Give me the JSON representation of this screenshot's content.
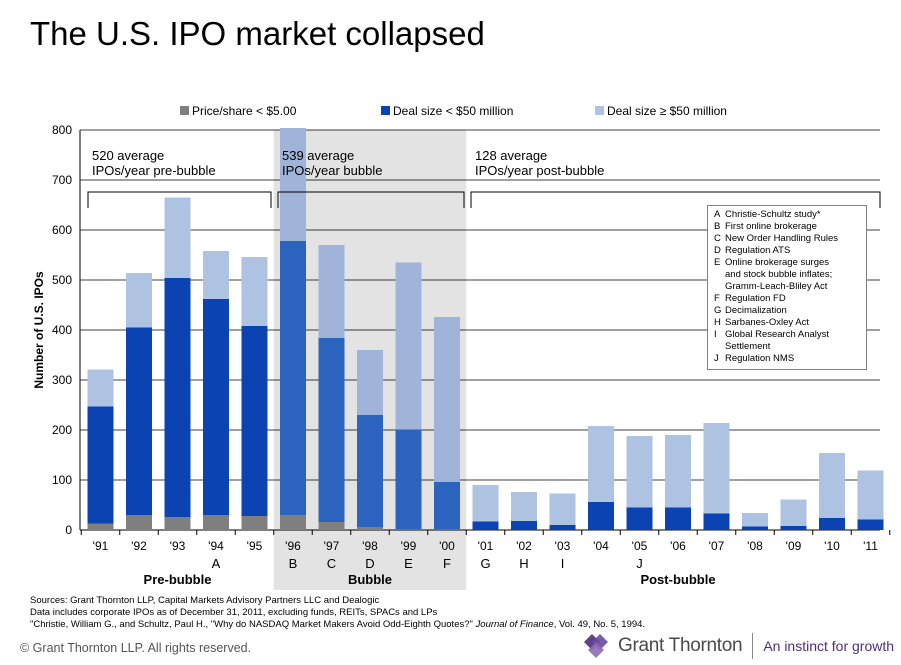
{
  "title": "The U.S. IPO market collapsed",
  "chart_data": {
    "type": "bar",
    "stacked": true,
    "categories": [
      "'91",
      "'92",
      "'93",
      "'94",
      "'95",
      "'96",
      "'97",
      "'98",
      "'99",
      "'00",
      "'01",
      "'02",
      "'03",
      "'04",
      "'05",
      "'06",
      "'07",
      "'08",
      "'09",
      "'10",
      "'11"
    ],
    "series": [
      {
        "name": "Price/share < $5.00",
        "color": "#7f7f7f",
        "values": [
          13,
          30,
          26,
          30,
          28,
          30,
          16,
          6,
          1,
          1,
          0,
          0,
          0,
          0,
          0,
          0,
          0,
          0,
          0,
          0,
          0
        ]
      },
      {
        "name": "Deal size < $50 million",
        "color": "#0b43b2",
        "values": [
          234,
          375,
          478,
          432,
          380,
          548,
          368,
          224,
          200,
          95,
          17,
          18,
          10,
          56,
          45,
          45,
          33,
          7,
          8,
          24,
          21
        ]
      },
      {
        "name": "Deal size ≥ $50 million",
        "color": "#aec2e2",
        "values": [
          74,
          109,
          161,
          96,
          138,
          226,
          186,
          130,
          334,
          330,
          73,
          58,
          63,
          152,
          143,
          145,
          181,
          27,
          53,
          130,
          98
        ]
      }
    ],
    "bubble_colors": [
      "#7f7f7f",
      "#2c63bf",
      "#9fb4d8"
    ],
    "bubble_range": [
      "'96",
      "'00"
    ],
    "ylabel": "Number of U.S. IPOs",
    "ylim": [
      0,
      800
    ],
    "yticks": [
      0,
      100,
      200,
      300,
      400,
      500,
      600,
      700,
      800
    ],
    "grid": true,
    "legend_position": "top",
    "event_letters": {
      "'94": "A",
      "'96": "B",
      "'97": "C",
      "'98": "D",
      "'99": "E",
      "'00": "F",
      "'01": "G",
      "'02": "H",
      "'03": "I",
      "'05": "J"
    },
    "periods": [
      {
        "label": "Pre-bubble",
        "average": "520 average\nIPOs/year pre-bubble",
        "from": "'91",
        "to": "'95"
      },
      {
        "label": "Bubble",
        "average": "539 average\nIPOs/year bubble",
        "from": "'96",
        "to": "'00"
      },
      {
        "label": "Post-bubble",
        "average": "128 average\nIPOs/year post-bubble",
        "from": "'01",
        "to": "'11"
      }
    ],
    "annotations": [
      {
        "key": "A",
        "text": "Christie-Schultz study*"
      },
      {
        "key": "B",
        "text": "First online brokerage"
      },
      {
        "key": "C",
        "text": "New Order Handling Rules"
      },
      {
        "key": "D",
        "text": "Regulation ATS"
      },
      {
        "key": "E",
        "text": "Online brokerage surges\nand stock bubble inflates;\nGramm-Leach-Bliley Act"
      },
      {
        "key": "F",
        "text": "Regulation FD"
      },
      {
        "key": "G",
        "text": "Decimalization"
      },
      {
        "key": "H",
        "text": "Sarbanes-Oxley Act"
      },
      {
        "key": "I",
        "text": "Global Research Analyst\nSettlement"
      },
      {
        "key": "J",
        "text": "Regulation NMS"
      }
    ]
  },
  "sources": {
    "line1": "Sources: Grant Thornton LLP, Capital Markets Advisory Partners LLC and Dealogic",
    "line2": "Data includes corporate IPOs as of December 31, 2011, excluding funds, REITs, SPACs and LPs",
    "line3_pre": "\"Christie, William G., and Schultz, Paul H., \"Why do NASDAQ Market Makers Avoid Odd-Eighth Quotes?\" ",
    "line3_journal": "Journal of Finance",
    "line3_post": ", Vol. 49, No. 5, 1994."
  },
  "footer": {
    "copyright": "© Grant Thornton LLP.  All rights reserved.",
    "brand": "Grant Thornton",
    "tagline": "An instinct for growth"
  },
  "logo_color": "#4f2d7f"
}
